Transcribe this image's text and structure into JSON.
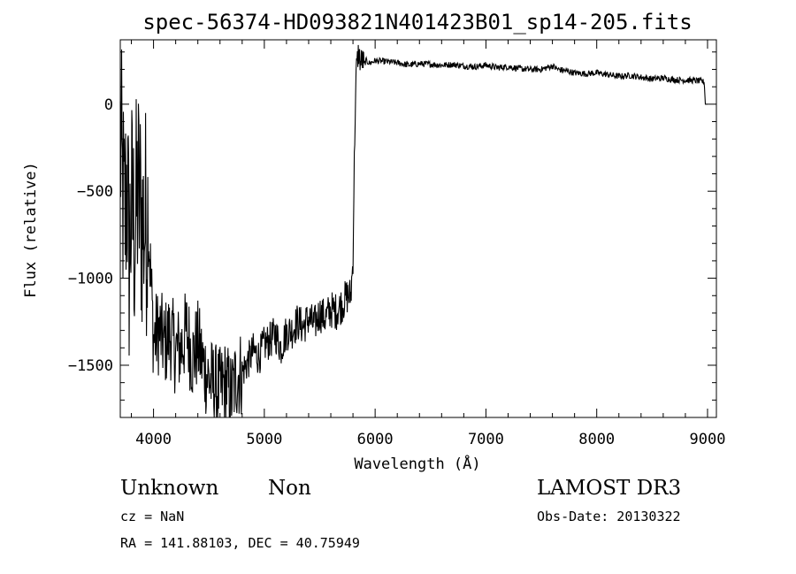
{
  "chart_data": {
    "type": "line",
    "title": "spec-56374-HD093821N401423B01_sp14-205.fits",
    "xlabel": "Wavelength (Å)",
    "ylabel": "Flux (relative)",
    "xlim": [
      3700,
      9080
    ],
    "ylim": [
      -1800,
      370
    ],
    "x_ticks": [
      {
        "value": 4000,
        "label": "4000"
      },
      {
        "value": 5000,
        "label": "5000"
      },
      {
        "value": 6000,
        "label": "6000"
      },
      {
        "value": 7000,
        "label": "7000"
      },
      {
        "value": 8000,
        "label": "8000"
      },
      {
        "value": 9000,
        "label": "9000"
      }
    ],
    "y_ticks": [
      {
        "value": 0,
        "label": "0"
      },
      {
        "value": -500,
        "label": "−500"
      },
      {
        "value": -1000,
        "label": "−1000"
      },
      {
        "value": -1500,
        "label": "−1500"
      }
    ],
    "grid": false,
    "series": [
      {
        "x": [
          3700,
          3720,
          3740,
          3760,
          3780,
          3800,
          3830,
          3860,
          3900,
          3950,
          4000,
          4050,
          4100,
          4150,
          4200,
          4250,
          4300,
          4350,
          4400,
          4450,
          4500,
          4550,
          4600,
          4650,
          4700,
          4750,
          4800,
          4850,
          4900,
          4950,
          5000,
          5050,
          5100,
          5150,
          5200,
          5250,
          5300,
          5350,
          5400,
          5450,
          5500,
          5550,
          5600,
          5650,
          5700,
          5750,
          5780,
          5800,
          5810,
          5820,
          5830,
          5840,
          5850,
          5860,
          5870,
          5880,
          5900,
          5920,
          5950,
          6000,
          6100,
          6200,
          6300,
          6400,
          6500,
          6600,
          6700,
          6800,
          6900,
          7000,
          7100,
          7200,
          7300,
          7400,
          7500,
          7600,
          7650,
          7700,
          7800,
          7900,
          8000,
          8100,
          8200,
          8300,
          8400,
          8500,
          8600,
          8700,
          8800,
          8900,
          8950,
          8970,
          8980,
          9000
        ],
        "y": [
          -200,
          -500,
          -700,
          -400,
          -900,
          -600,
          -750,
          -500,
          -700,
          -650,
          -1350,
          -1300,
          -1380,
          -1320,
          -1420,
          -1400,
          -1300,
          -1460,
          -1380,
          -1500,
          -1580,
          -1620,
          -1650,
          -1600,
          -1680,
          -1560,
          -1540,
          -1480,
          -1420,
          -1450,
          -1380,
          -1360,
          -1320,
          -1400,
          -1310,
          -1300,
          -1250,
          -1280,
          -1230,
          -1270,
          -1200,
          -1230,
          -1180,
          -1190,
          -1150,
          -1100,
          -1100,
          -900,
          -400,
          -50,
          200,
          250,
          300,
          270,
          230,
          260,
          230,
          250,
          235,
          250,
          245,
          238,
          225,
          232,
          230,
          224,
          228,
          220,
          215,
          225,
          210,
          215,
          205,
          200,
          200,
          220,
          200,
          195,
          180,
          175,
          180,
          170,
          160,
          165,
          155,
          145,
          150,
          140,
          138,
          135,
          132,
          125,
          0,
          0
        ]
      }
    ]
  },
  "footer": {
    "classification": "Unknown",
    "subclass": "Non",
    "survey": "LAMOST DR3",
    "cz": "cz = NaN",
    "obs_date": "Obs-Date: 20130322",
    "coords": "RA = 141.88103, DEC =  40.75949"
  },
  "colors": {
    "background": "#ffffff",
    "ink": "#000000"
  }
}
